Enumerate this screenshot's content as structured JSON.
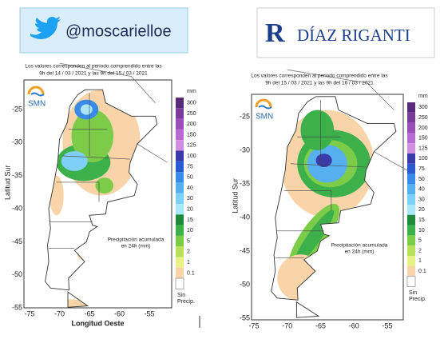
{
  "left": {
    "badge": "@moscarielloe",
    "caption": [
      "Los valores corresponden al periodo comprendido entre las",
      "9h del 14 / 03 / 2021  y las 9h del 15 / 03 / 2021"
    ],
    "logo": "SMN",
    "ylabel": "Latitud Sur",
    "xlabel": "Longitud Oeste",
    "unit": "mm",
    "note": [
      "Precipitación acumulada",
      "en 24h (mm)"
    ],
    "legend": [
      "300",
      "250",
      "200",
      "150",
      "125",
      "100",
      "75",
      "50",
      "40",
      "30",
      "20",
      "15",
      "10",
      "5",
      "2",
      "1",
      "0.1"
    ],
    "no_rain": [
      "Sin",
      "Precip."
    ],
    "yticks": [
      "-25",
      "-30",
      "-35",
      "-40",
      "-45",
      "-50",
      "-55"
    ],
    "xticks": [
      "-75",
      "-70",
      "-65",
      "-60",
      "-55"
    ]
  },
  "right": {
    "logo_brand": "DÍAZ RIGANTI",
    "caption": [
      "Los valores corresponden al periodo comprendido entre las",
      "9h del 15 / 03 / 2021  y las 9h del 16 / 03 / 2021"
    ],
    "logo": "SMN",
    "ylabel": "Latitud Sur",
    "unit": "mm",
    "note": [
      "Precipitación acumulada",
      "en 24h (mm)"
    ],
    "legend": [
      "300",
      "250",
      "200",
      "150",
      "125",
      "100",
      "75",
      "50",
      "40",
      "30",
      "20",
      "15",
      "10",
      "5",
      "2",
      "1",
      "0.1"
    ],
    "no_rain": [
      "Sin",
      "Precip."
    ],
    "yticks": [
      "-25",
      "-30",
      "-35",
      "-40",
      "-45",
      "-50",
      "-55"
    ],
    "xticks": [
      "-75",
      "-70",
      "-65",
      "-60",
      "-55"
    ]
  }
}
